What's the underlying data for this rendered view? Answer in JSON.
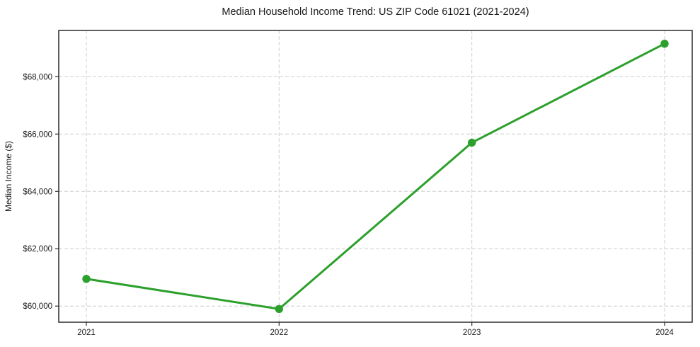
{
  "chart_data": {
    "type": "line",
    "title": "Median Household Income Trend: US ZIP Code 61021 (2021-2024)",
    "xlabel": "",
    "ylabel": "Median Income ($)",
    "categories": [
      "2021",
      "2022",
      "2023",
      "2024"
    ],
    "series": [
      {
        "name": "median-household-income",
        "values": [
          60950,
          59900,
          65700,
          69150
        ],
        "color": "#2ca02c",
        "marker": "circle"
      }
    ],
    "ylim": [
      59437.5,
      69612.5
    ],
    "yticks": [
      60000,
      62000,
      64000,
      66000,
      68000
    ],
    "ytick_labels": [
      "$60,000",
      "$62,000",
      "$64,000",
      "$66,000",
      "$68,000"
    ],
    "xtick_labels": [
      "2021",
      "2022",
      "2023",
      "2024"
    ],
    "grid": "dashed-both-axes",
    "legend": "none"
  },
  "style": {
    "line_color": "#2ca02c",
    "marker_color": "#2ca02c",
    "grid_color": "#cdcdcd",
    "spine_color": "#2b2b2b",
    "tick_color": "#2b2b2b",
    "text_color": "#1a1a1a",
    "background": "#ffffff"
  }
}
